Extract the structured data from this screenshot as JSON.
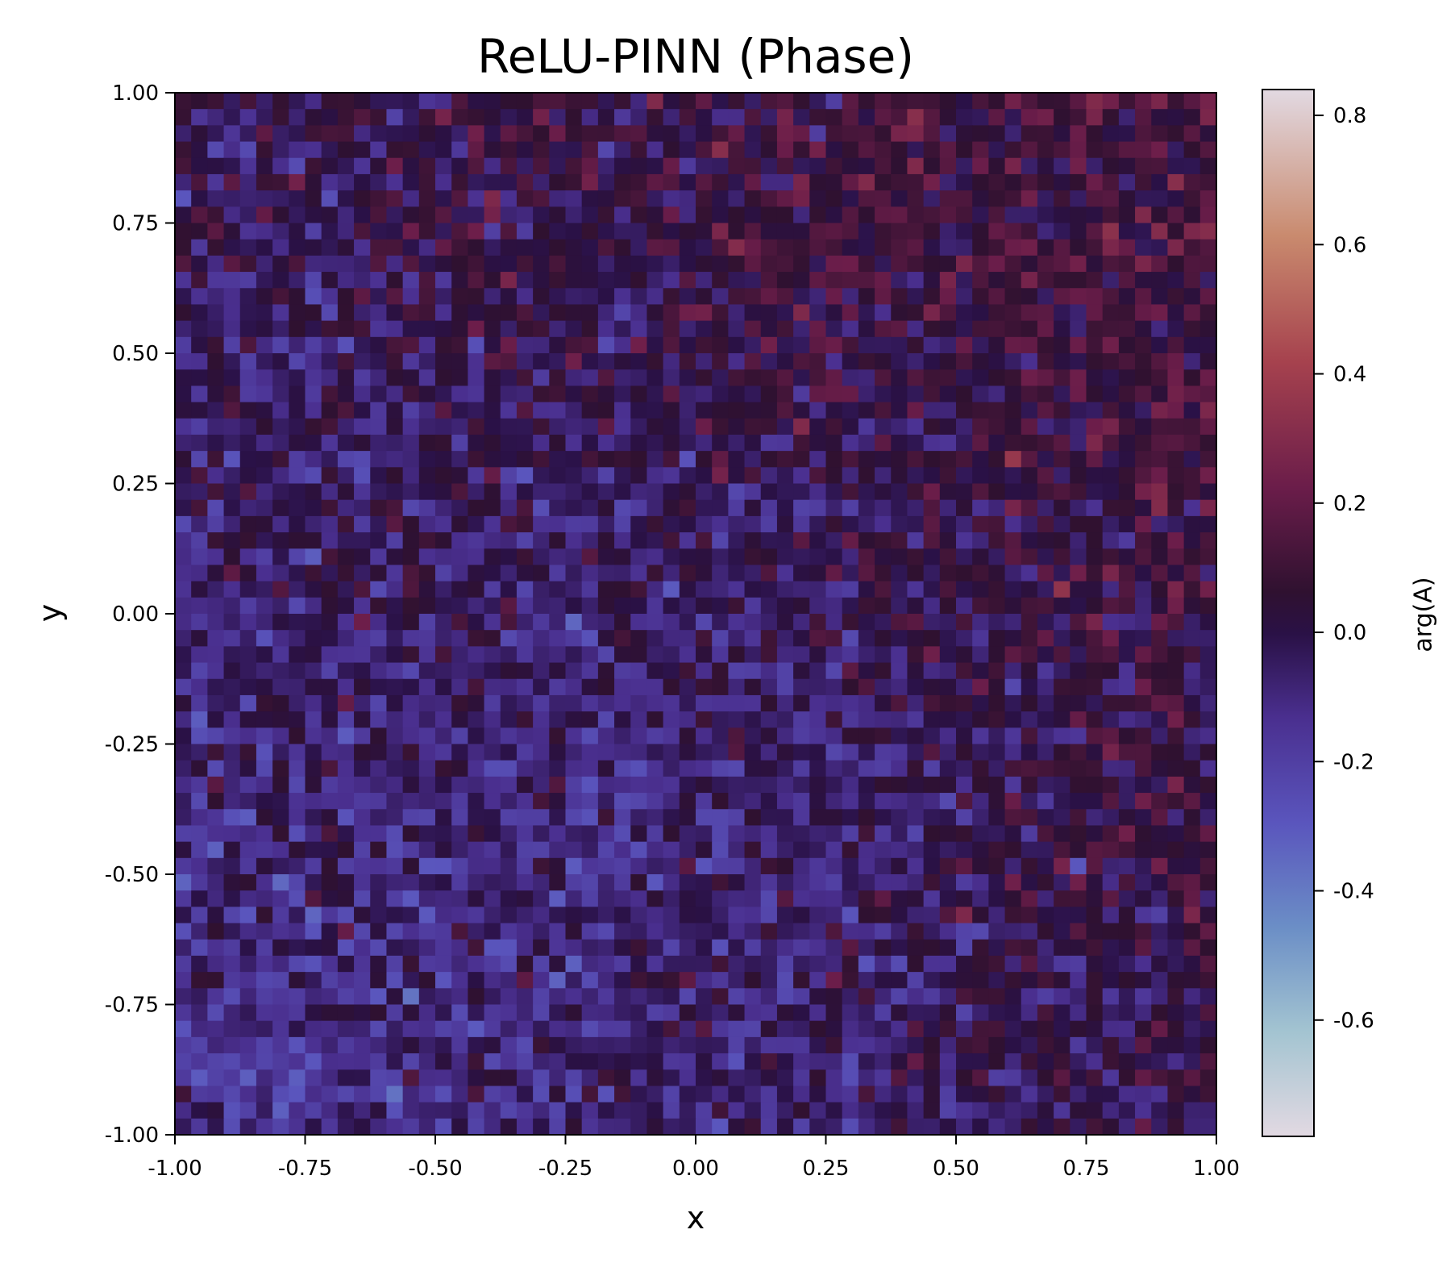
{
  "chart_data": {
    "type": "heatmap",
    "title": "ReLU-PINN (Phase)",
    "xlabel": "x",
    "ylabel": "y",
    "xlim": [
      -1.0,
      1.0
    ],
    "ylim": [
      -1.0,
      1.0
    ],
    "x_ticks": [
      "-1.00",
      "-0.75",
      "-0.50",
      "-0.25",
      "0.00",
      "0.25",
      "0.50",
      "0.75",
      "1.00"
    ],
    "y_ticks": [
      "-1.00",
      "-0.75",
      "-0.50",
      "-0.25",
      "0.00",
      "0.25",
      "0.50",
      "0.75",
      "1.00"
    ],
    "grid": false,
    "grid_resolution": [
      64,
      64
    ],
    "field": "pixel-level noise-like phase field, roughly uniform over the domain with values concentrated near 0 (dark) and sporadic extremes",
    "colorbar": {
      "label": "arg(A)",
      "range": [
        -0.78,
        0.84
      ],
      "ticks": [
        "-0.6",
        "-0.4",
        "-0.2",
        "0.0",
        "0.2",
        "0.4",
        "0.6",
        "0.8"
      ],
      "colormap": "twilight_shifted"
    }
  }
}
